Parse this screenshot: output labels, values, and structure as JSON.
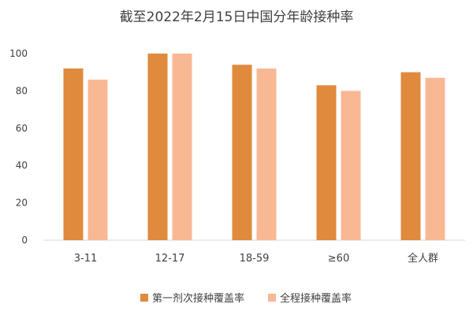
{
  "chart_data": {
    "type": "bar",
    "title": "截至2022年2月15日中国分年龄接种率",
    "categories": [
      "3-11",
      "12-17",
      "18-59",
      "≥60",
      "全人群"
    ],
    "series": [
      {
        "name": "第一剂次接种覆盖率",
        "values": [
          92,
          100,
          94,
          83,
          90
        ],
        "color": "#e08a3e"
      },
      {
        "name": "全程接种覆盖率",
        "values": [
          86,
          100,
          92,
          80,
          87
        ],
        "color": "#f8b894"
      }
    ],
    "ylim": [
      0,
      100
    ],
    "yticks": [
      0,
      20,
      40,
      60,
      80,
      100
    ],
    "xlabel": "",
    "ylabel": "",
    "grid": false,
    "legend_position": "bottom"
  }
}
